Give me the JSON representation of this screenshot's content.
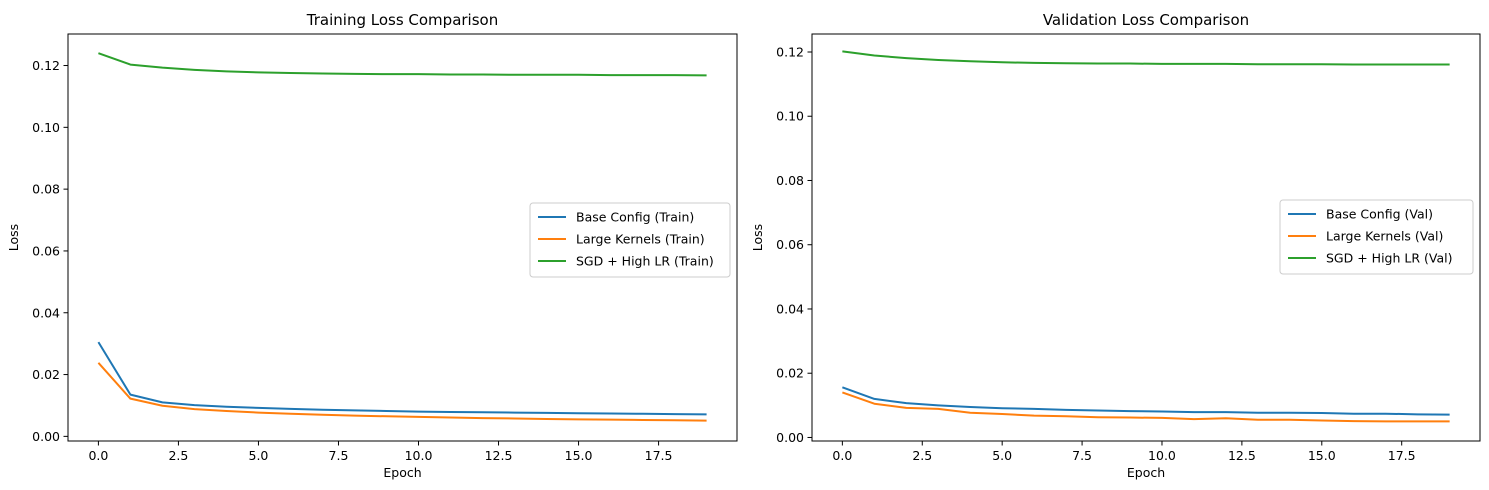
{
  "chart_data": [
    {
      "type": "line",
      "title": "Training Loss Comparison",
      "xlabel": "Epoch",
      "ylabel": "Loss",
      "xlim": [
        -0.95,
        19.95
      ],
      "ylim": [
        -0.0015,
        0.1302
      ],
      "xticks": [
        0.0,
        2.5,
        5.0,
        7.5,
        10.0,
        12.5,
        15.0,
        17.5
      ],
      "xtick_labels": [
        "0.0",
        "2.5",
        "5.0",
        "7.5",
        "10.0",
        "12.5",
        "15.0",
        "17.5"
      ],
      "yticks": [
        0.0,
        0.02,
        0.04,
        0.06,
        0.08,
        0.1,
        0.12
      ],
      "ytick_labels": [
        "0.00",
        "0.02",
        "0.04",
        "0.06",
        "0.08",
        "0.10",
        "0.12"
      ],
      "legend_position": "center-right",
      "grid": false,
      "x": [
        0,
        1,
        2,
        3,
        4,
        5,
        6,
        7,
        8,
        9,
        10,
        11,
        12,
        13,
        14,
        15,
        16,
        17,
        18,
        19
      ],
      "series": [
        {
          "name": "Base Config (Train)",
          "color": "#1f77b4",
          "values": [
            0.0305,
            0.0135,
            0.011,
            0.0101,
            0.0096,
            0.0092,
            0.0089,
            0.0086,
            0.0084,
            0.0082,
            0.008,
            0.0079,
            0.0078,
            0.0077,
            0.0076,
            0.0075,
            0.0074,
            0.0073,
            0.0072,
            0.0071
          ]
        },
        {
          "name": "Large Kernels (Train)",
          "color": "#ff7f0e",
          "values": [
            0.0238,
            0.0122,
            0.0099,
            0.0088,
            0.0082,
            0.0077,
            0.0073,
            0.007,
            0.0067,
            0.0065,
            0.0063,
            0.0061,
            0.0059,
            0.0058,
            0.0056,
            0.0055,
            0.0054,
            0.0053,
            0.0052,
            0.0051
          ]
        },
        {
          "name": "SGD + High LR (Train)",
          "color": "#2ca02c",
          "values": [
            0.124,
            0.1203,
            0.1193,
            0.1186,
            0.1181,
            0.1178,
            0.1176,
            0.1174,
            0.1173,
            0.1172,
            0.1172,
            0.1171,
            0.1171,
            0.117,
            0.117,
            0.117,
            0.1169,
            0.1169,
            0.1169,
            0.1168
          ]
        }
      ]
    },
    {
      "type": "line",
      "title": "Validation Loss Comparison",
      "xlabel": "Epoch",
      "ylabel": "Loss",
      "xlim": [
        -0.95,
        19.95
      ],
      "ylim": [
        -0.0011,
        0.1256
      ],
      "xticks": [
        0.0,
        2.5,
        5.0,
        7.5,
        10.0,
        12.5,
        15.0,
        17.5
      ],
      "xtick_labels": [
        "0.0",
        "2.5",
        "5.0",
        "7.5",
        "10.0",
        "12.5",
        "15.0",
        "17.5"
      ],
      "yticks": [
        0.0,
        0.02,
        0.04,
        0.06,
        0.08,
        0.1,
        0.12
      ],
      "ytick_labels": [
        "0.00",
        "0.02",
        "0.04",
        "0.06",
        "0.08",
        "0.10",
        "0.12"
      ],
      "legend_position": "center-right",
      "grid": false,
      "x": [
        0,
        1,
        2,
        3,
        4,
        5,
        6,
        7,
        8,
        9,
        10,
        11,
        12,
        13,
        14,
        15,
        16,
        17,
        18,
        19
      ],
      "series": [
        {
          "name": "Base Config (Val)",
          "color": "#1f77b4",
          "values": [
            0.0156,
            0.012,
            0.0107,
            0.01,
            0.0095,
            0.0091,
            0.0089,
            0.0086,
            0.0084,
            0.0082,
            0.0081,
            0.0079,
            0.0079,
            0.0077,
            0.0077,
            0.0076,
            0.0074,
            0.0074,
            0.0072,
            0.0071
          ]
        },
        {
          "name": "Large Kernels (Val)",
          "color": "#ff7f0e",
          "values": [
            0.014,
            0.0105,
            0.0092,
            0.0089,
            0.0077,
            0.0073,
            0.0068,
            0.0066,
            0.0063,
            0.0062,
            0.0061,
            0.0057,
            0.006,
            0.0055,
            0.0055,
            0.0053,
            0.0051,
            0.005,
            0.005,
            0.005
          ]
        },
        {
          "name": "SGD + High LR (Val)",
          "color": "#2ca02c",
          "values": [
            0.1202,
            0.1189,
            0.1181,
            0.1175,
            0.1171,
            0.1168,
            0.1166,
            0.1165,
            0.1164,
            0.1164,
            0.1163,
            0.1163,
            0.1163,
            0.1162,
            0.1162,
            0.1162,
            0.1161,
            0.1161,
            0.1161,
            0.1161
          ]
        }
      ]
    }
  ]
}
